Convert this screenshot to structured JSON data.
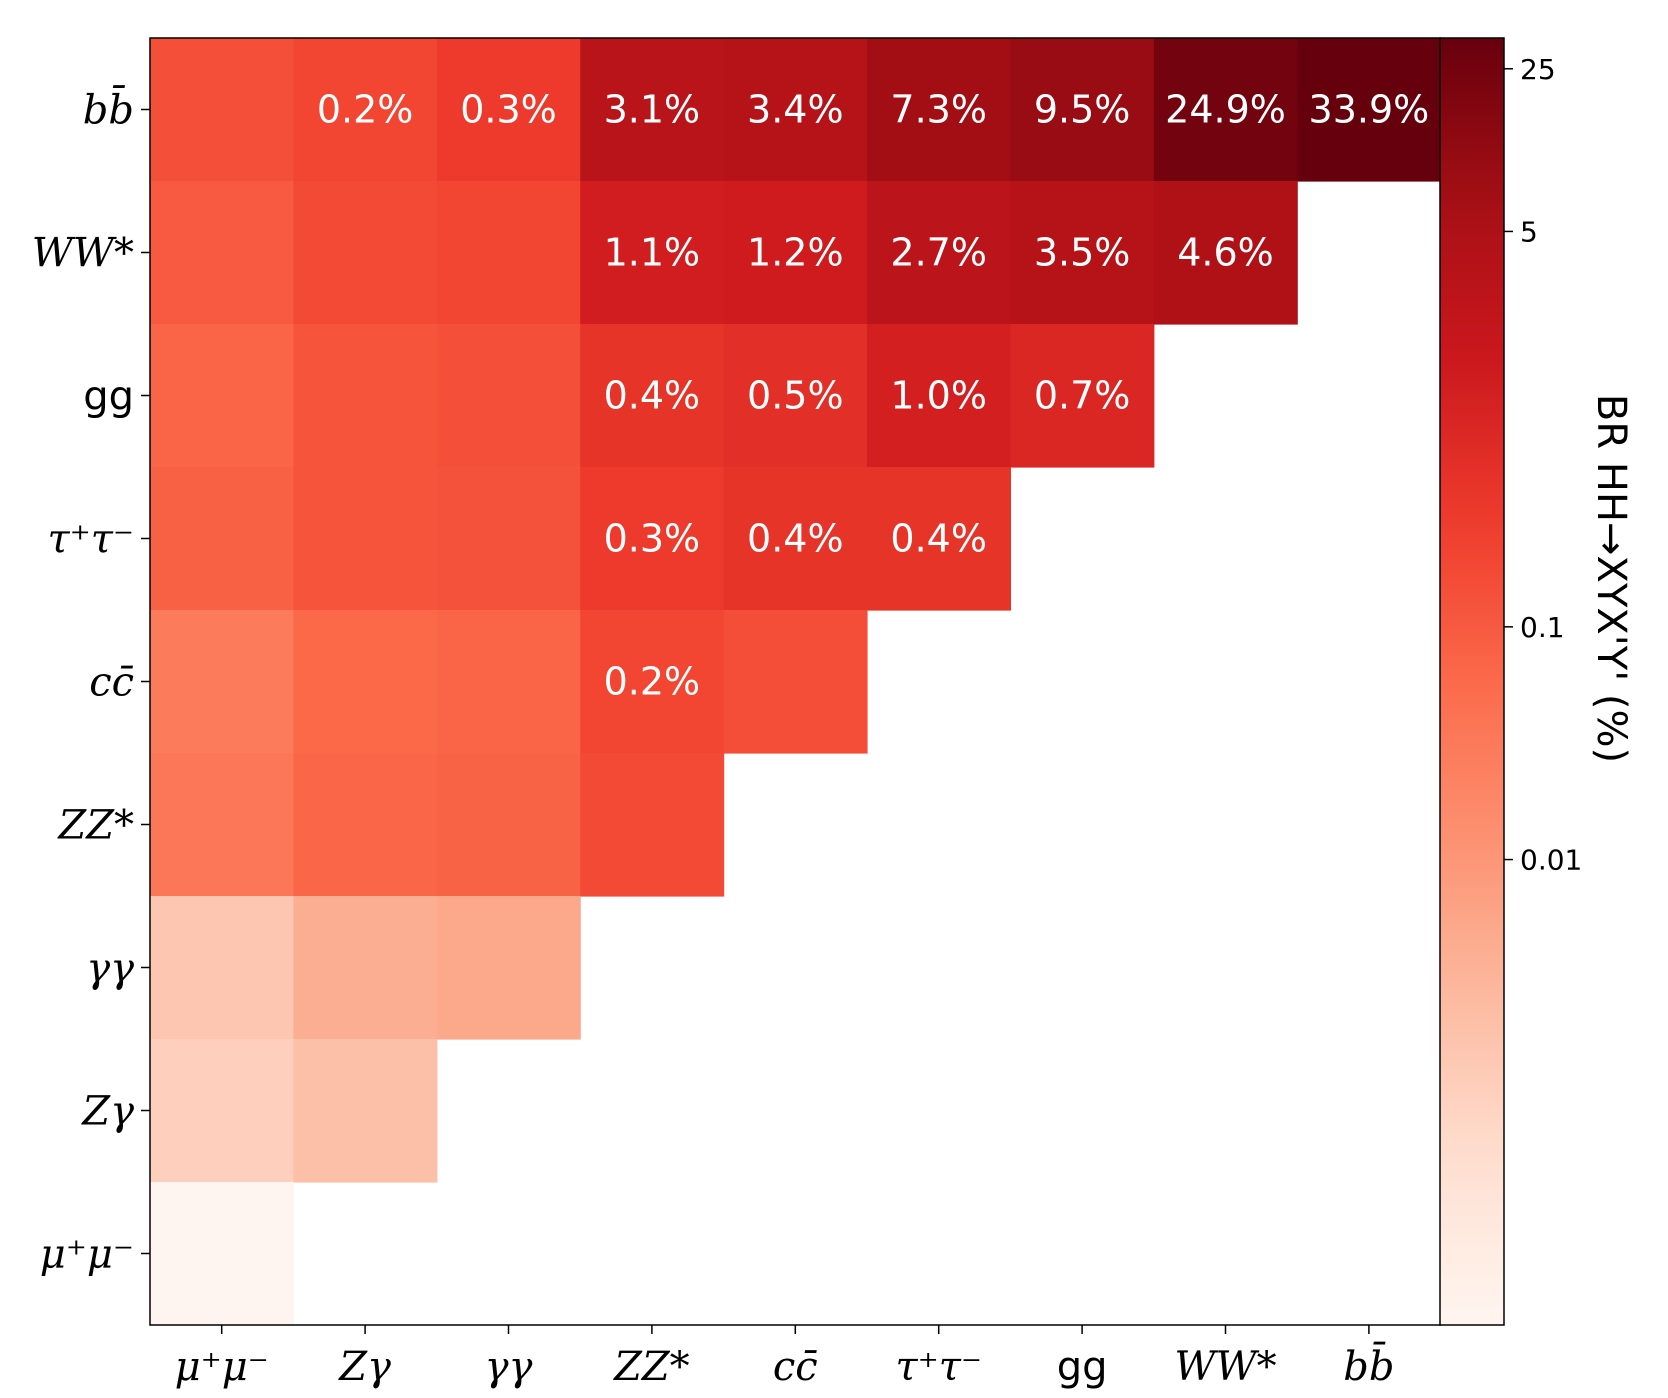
{
  "chart_data": {
    "type": "heatmap",
    "title": "",
    "x_categories": [
      "μ⁺μ⁻",
      "Zγ",
      "γγ",
      "ZZ*",
      "cc̄",
      "τ⁺τ⁻",
      "gg",
      "WW*",
      "bb̄"
    ],
    "y_categories": [
      "bb̄",
      "WW*",
      "gg",
      "τ⁺τ⁻",
      "cc̄",
      "ZZ*",
      "γγ",
      "Zγ",
      "μ⁺μ⁻"
    ],
    "values": [
      [
        0.14,
        0.2,
        0.3,
        3.1,
        3.4,
        7.3,
        9.5,
        24.9,
        33.9
      ],
      [
        0.1,
        0.17,
        0.2,
        1.1,
        1.2,
        2.7,
        3.5,
        4.6,
        null
      ],
      [
        0.07,
        0.12,
        0.14,
        0.4,
        0.5,
        1.0,
        0.7,
        null,
        null
      ],
      [
        0.08,
        0.12,
        0.13,
        0.3,
        0.4,
        0.4,
        null,
        null,
        null
      ],
      [
        0.03,
        0.06,
        0.07,
        0.2,
        0.15,
        null,
        null,
        null,
        null
      ],
      [
        0.035,
        0.065,
        0.075,
        0.17,
        null,
        null,
        null,
        null,
        null
      ],
      [
        0.0015,
        0.004,
        0.005,
        null,
        null,
        null,
        null,
        null,
        null
      ],
      [
        0.001,
        0.002,
        null,
        null,
        null,
        null,
        null,
        null,
        null
      ],
      [
        0.0001,
        null,
        null,
        null,
        null,
        null,
        null,
        null,
        null
      ]
    ],
    "cell_labels": [
      [
        "",
        "0.2%",
        "0.3%",
        "3.1%",
        "3.4%",
        "7.3%",
        "9.5%",
        "24.9%",
        "33.9%"
      ],
      [
        "",
        "",
        "",
        "1.1%",
        "1.2%",
        "2.7%",
        "3.5%",
        "4.6%",
        ""
      ],
      [
        "",
        "",
        "",
        "0.4%",
        "0.5%",
        "1.0%",
        "0.7%",
        "",
        ""
      ],
      [
        "",
        "",
        "",
        "0.3%",
        "0.4%",
        "0.4%",
        "",
        "",
        ""
      ],
      [
        "",
        "",
        "",
        "0.2%",
        "",
        "",
        "",
        "",
        ""
      ],
      [
        "",
        "",
        "",
        "",
        "",
        "",
        "",
        "",
        ""
      ],
      [
        "",
        "",
        "",
        "",
        "",
        "",
        "",
        "",
        ""
      ],
      [
        "",
        "",
        "",
        "",
        "",
        "",
        "",
        "",
        ""
      ],
      [
        "",
        "",
        "",
        "",
        "",
        "",
        "",
        "",
        ""
      ]
    ],
    "colorbar": {
      "label": "BR HH→XYX'Y' (%)",
      "scale": "log",
      "range": [
        0.0001,
        33.9
      ],
      "ticks": [
        25,
        5,
        0.1,
        0.01
      ],
      "tick_labels": [
        "25",
        "5",
        "0.1",
        "0.01"
      ],
      "colormap": "Reds"
    },
    "grid": false
  },
  "colors": {
    "reds": [
      "#fff5f0",
      "#fee0d2",
      "#fcbba1",
      "#fc9272",
      "#fb6a4a",
      "#ef3b2c",
      "#cb181d",
      "#a50f15",
      "#67000d"
    ]
  }
}
